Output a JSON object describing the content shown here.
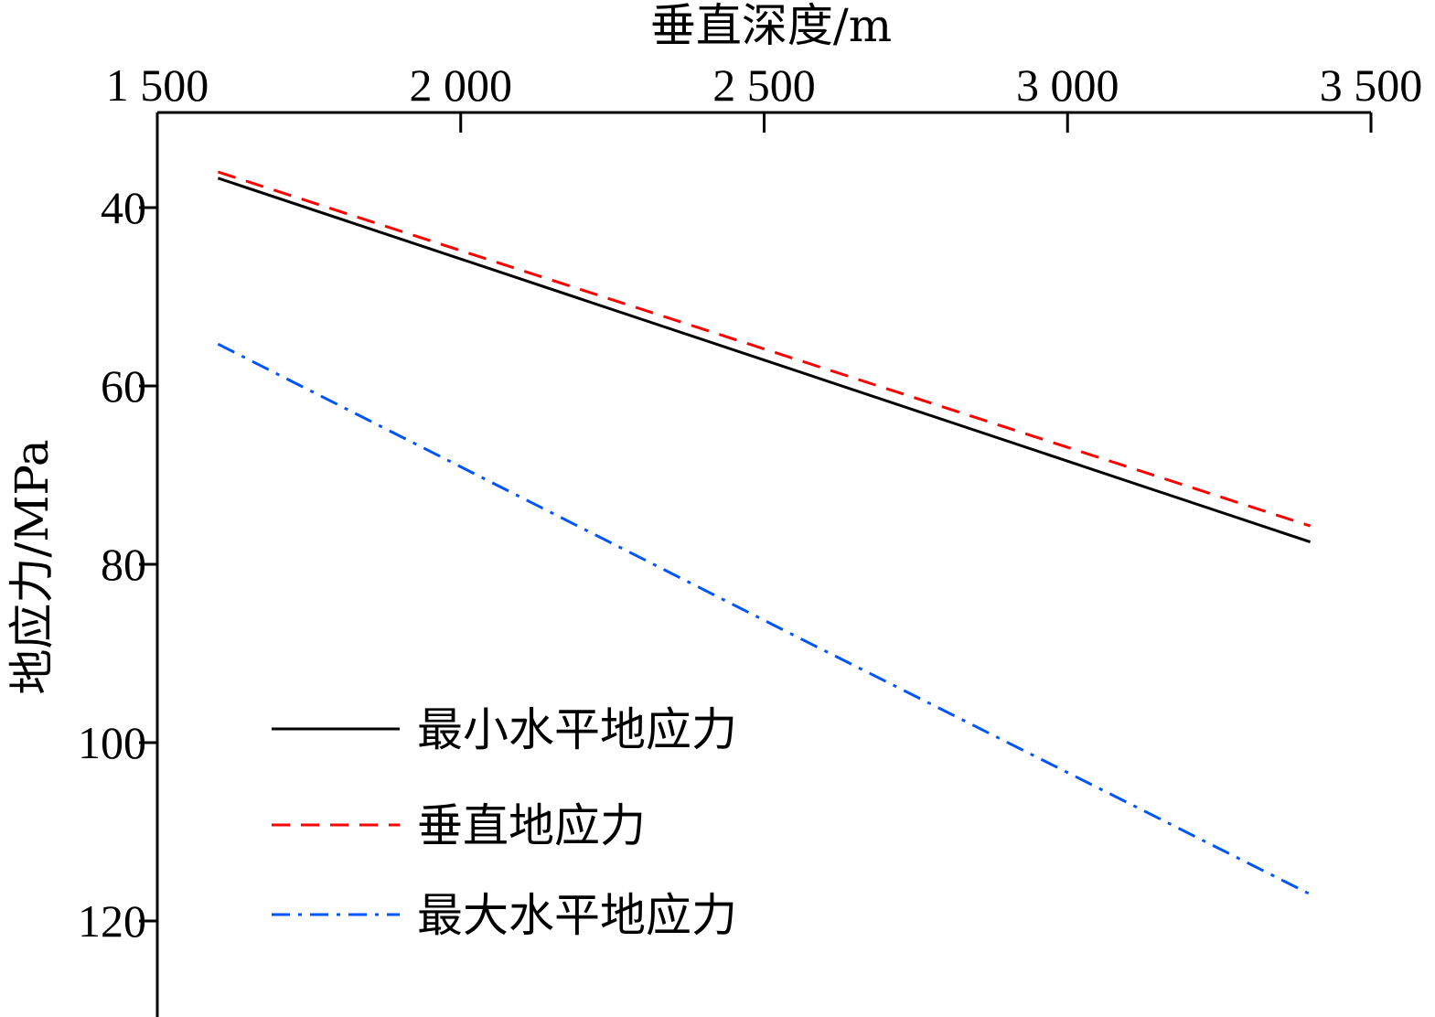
{
  "chart_data": {
    "type": "line",
    "xlabel": "垂直深度/m",
    "ylabel": "地应力/MPa",
    "xlim": [
      1500,
      3500
    ],
    "ylim": [
      130,
      25
    ],
    "x_axis_position": "top",
    "y_axis_inverted": true,
    "grid": false,
    "legend_position": "bottom-left",
    "x_ticks": [
      1500,
      2000,
      2500,
      3000,
      3500
    ],
    "x_tick_labels": [
      "1 500",
      "2 000",
      "2 500",
      "3 000",
      "3 500"
    ],
    "y_ticks": [
      40,
      60,
      80,
      100,
      120
    ],
    "y_tick_labels": [
      "40",
      "60",
      "80",
      "100",
      "120"
    ],
    "series": [
      {
        "name": "最小水平地应力",
        "color": "#000000",
        "dash": "solid",
        "points": [
          [
            1600,
            36.7
          ],
          [
            3400,
            77.5
          ]
        ]
      },
      {
        "name": "垂直地应力",
        "color": "#ff0000",
        "dash": "dashed",
        "points": [
          [
            1600,
            36.0
          ],
          [
            3400,
            75.7
          ]
        ]
      },
      {
        "name": "最大水平地应力",
        "color": "#0055ff",
        "dash": "dashdot",
        "points": [
          [
            1600,
            55.3
          ],
          [
            2550,
            88.0
          ],
          [
            3400,
            117.0
          ]
        ]
      }
    ]
  }
}
